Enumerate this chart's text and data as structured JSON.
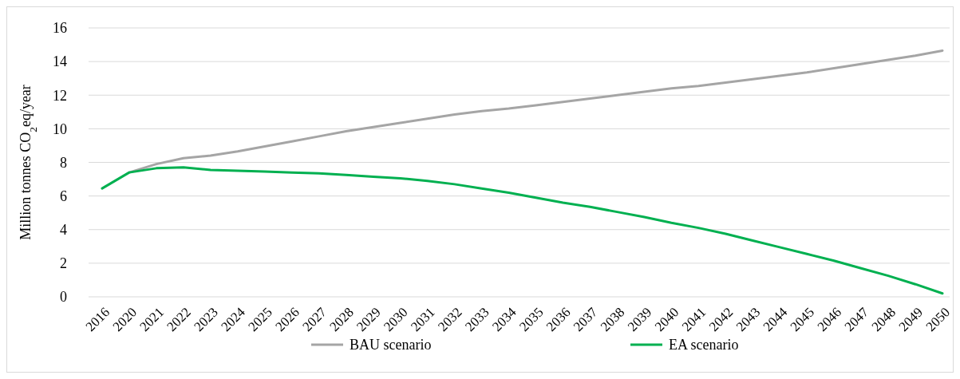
{
  "chart_data": {
    "type": "line",
    "ylabel": "Million tonnes CO$_{2}$eq/year",
    "categories": [
      "2016",
      "2020",
      "2021",
      "2022",
      "2023",
      "2024",
      "2025",
      "2026",
      "2027",
      "2028",
      "2029",
      "2030",
      "2031",
      "2032",
      "2033",
      "2034",
      "2035",
      "2036",
      "2037",
      "2038",
      "2039",
      "2040",
      "2041",
      "2042",
      "2043",
      "2044",
      "2045",
      "2046",
      "2047",
      "2048",
      "2049",
      "2050"
    ],
    "series": [
      {
        "name": "BAU scenario",
        "color": "#a5a5a5",
        "values": [
          null,
          7.4,
          7.9,
          8.25,
          8.4,
          8.65,
          8.95,
          9.25,
          9.55,
          9.85,
          10.1,
          10.35,
          10.6,
          10.85,
          11.05,
          11.2,
          11.4,
          11.6,
          11.8,
          12.0,
          12.2,
          12.4,
          12.55,
          12.75,
          12.95,
          13.15,
          13.35,
          13.6,
          13.85,
          14.1,
          14.35,
          14.65
        ]
      },
      {
        "name": "EA scenario",
        "color": "#00b050",
        "values": [
          6.45,
          7.4,
          7.65,
          7.7,
          7.55,
          7.5,
          7.45,
          7.4,
          7.35,
          7.25,
          7.15,
          7.05,
          6.9,
          6.7,
          6.45,
          6.2,
          5.9,
          5.6,
          5.35,
          5.05,
          4.75,
          4.4,
          4.1,
          3.75,
          3.35,
          2.95,
          2.55,
          2.15,
          1.7,
          1.25,
          0.75,
          0.2
        ]
      }
    ],
    "ylim": [
      0,
      16
    ],
    "yticks": [
      0,
      2,
      4,
      6,
      8,
      10,
      12,
      14,
      16
    ],
    "grid": "y",
    "legend": "bottom",
    "marker": "none",
    "line_style": "solid"
  }
}
